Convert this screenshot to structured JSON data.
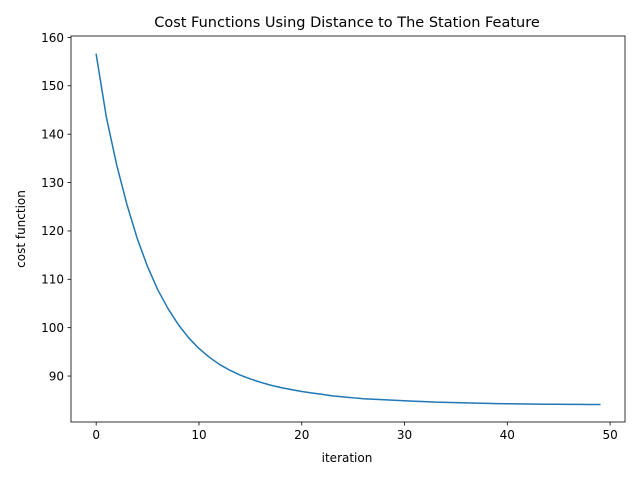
{
  "chart_data": {
    "type": "line",
    "title": "Cost Functions Using Distance to The Station Feature",
    "xlabel": "iteration",
    "ylabel": "cost function",
    "xlim": [
      -2.45,
      51.45
    ],
    "ylim": [
      80.5,
      160.3
    ],
    "xticks": [
      0,
      10,
      20,
      30,
      40,
      50
    ],
    "yticks": [
      90,
      100,
      110,
      120,
      130,
      140,
      150,
      160
    ],
    "grid": false,
    "legend": "none",
    "series": [
      {
        "color": "#1f77b4",
        "x": [
          0,
          1,
          2,
          3,
          4,
          5,
          6,
          7,
          8,
          9,
          10,
          11,
          12,
          13,
          14,
          15,
          16,
          17,
          18,
          19,
          20,
          21,
          22,
          23,
          24,
          25,
          26,
          27,
          28,
          29,
          30,
          31,
          32,
          33,
          34,
          35,
          36,
          37,
          38,
          39,
          40,
          41,
          42,
          43,
          44,
          45,
          46,
          47,
          48,
          49
        ],
        "y": [
          156.5,
          143.4,
          133.6,
          125.4,
          118.4,
          112.6,
          107.8,
          103.9,
          100.6,
          97.9,
          95.7,
          93.9,
          92.4,
          91.2,
          90.2,
          89.4,
          88.7,
          88.1,
          87.6,
          87.2,
          86.8,
          86.5,
          86.2,
          85.9,
          85.7,
          85.5,
          85.3,
          85.2,
          85.1,
          85.0,
          84.9,
          84.8,
          84.7,
          84.6,
          84.55,
          84.5,
          84.45,
          84.4,
          84.35,
          84.3,
          84.28,
          84.25,
          84.22,
          84.2,
          84.18,
          84.16,
          84.15,
          84.14,
          84.13,
          84.12
        ]
      }
    ]
  }
}
